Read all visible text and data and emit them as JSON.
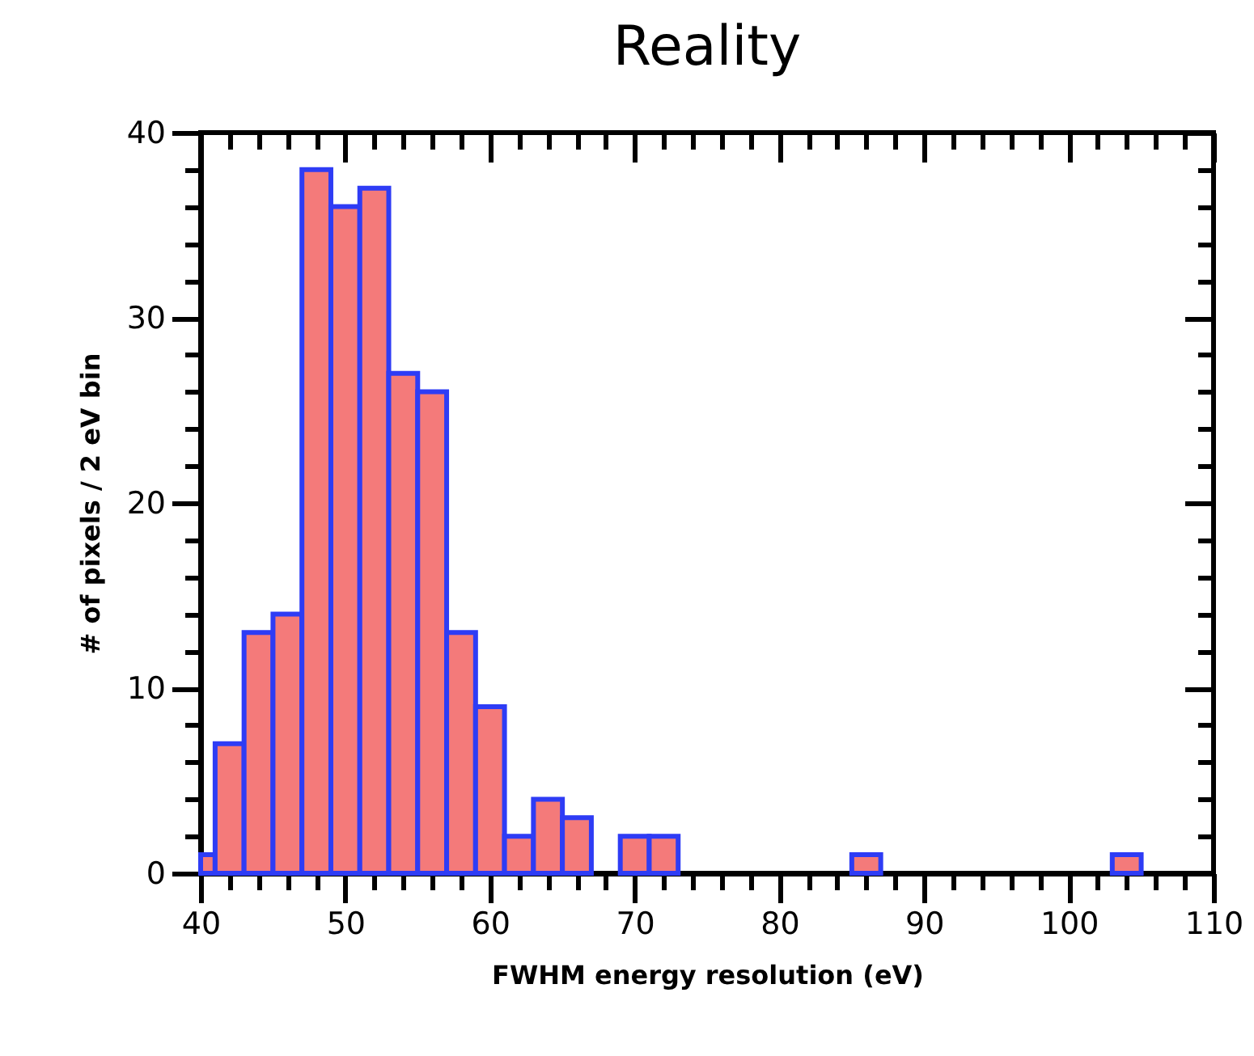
{
  "chart_data": {
    "type": "histogram",
    "title": "Reality",
    "xlabel": "FWHM energy resolution (eV)",
    "ylabel": "# of pixels / 2 eV bin",
    "bins": [
      40,
      41,
      43,
      45,
      47,
      49,
      51,
      53,
      55,
      57,
      59,
      61,
      63,
      65,
      67,
      69,
      71,
      73,
      85,
      87,
      103,
      105
    ],
    "values": [
      1,
      7,
      13,
      14,
      38,
      36,
      37,
      27,
      26,
      13,
      9,
      2,
      4,
      3,
      0,
      2,
      2,
      0,
      1,
      0,
      1
    ],
    "color": "#f47a7a",
    "xlim": [
      40,
      110
    ],
    "ylim": [
      0,
      40
    ],
    "xticks": [
      40,
      {
        "value": 42,
        "label": null
      },
      {
        "value": 44,
        "label": null
      },
      {
        "value": 46,
        "label": null
      },
      {
        "value": 48,
        "label": null
      },
      50,
      {
        "value": 52,
        "label": null
      },
      {
        "value": 54,
        "label": null
      },
      {
        "value": 56,
        "label": null
      },
      {
        "value": 58,
        "label": null
      },
      60,
      {
        "value": 62,
        "label": null
      },
      {
        "value": 64,
        "label": null
      },
      {
        "value": 66,
        "label": null
      },
      {
        "value": 68,
        "label": null
      },
      70,
      {
        "value": 72,
        "label": null
      },
      {
        "value": 74,
        "label": null
      },
      {
        "value": 76,
        "label": null
      },
      {
        "value": 78,
        "label": null
      },
      80,
      {
        "value": 82,
        "label": null
      },
      {
        "value": 84,
        "label": null
      },
      {
        "value": 86,
        "label": null
      },
      {
        "value": 88,
        "label": null
      },
      90,
      {
        "value": 92,
        "label": null
      },
      {
        "value": 94,
        "label": null
      },
      {
        "value": 96,
        "label": null
      },
      {
        "value": 98,
        "label": null
      },
      100,
      {
        "value": 102,
        "label": null
      },
      {
        "value": 104,
        "label": null
      },
      {
        "value": 106,
        "label": null
      },
      {
        "value": 108,
        "label": null
      },
      110
    ],
    "yticks": [
      0,
      {
        "value": 2,
        "label": null
      },
      {
        "value": 4,
        "label": null
      },
      {
        "value": 6,
        "label": null
      },
      {
        "value": 8,
        "label": null
      },
      10,
      {
        "value": 12,
        "label": null
      },
      {
        "value": 14,
        "label": null
      },
      {
        "value": 16,
        "label": null
      },
      {
        "value": 18,
        "label": null
      },
      20,
      {
        "value": 22,
        "label": null
      },
      {
        "value": 24,
        "label": null
      },
      {
        "value": 26,
        "label": null
      },
      {
        "value": 28,
        "label": null
      },
      30,
      {
        "value": 32,
        "label": null
      },
      {
        "value": 34,
        "label": null
      },
      {
        "value": 36,
        "label": null
      },
      {
        "value": 38,
        "label": null
      },
      40
    ],
    "grid": false
  }
}
